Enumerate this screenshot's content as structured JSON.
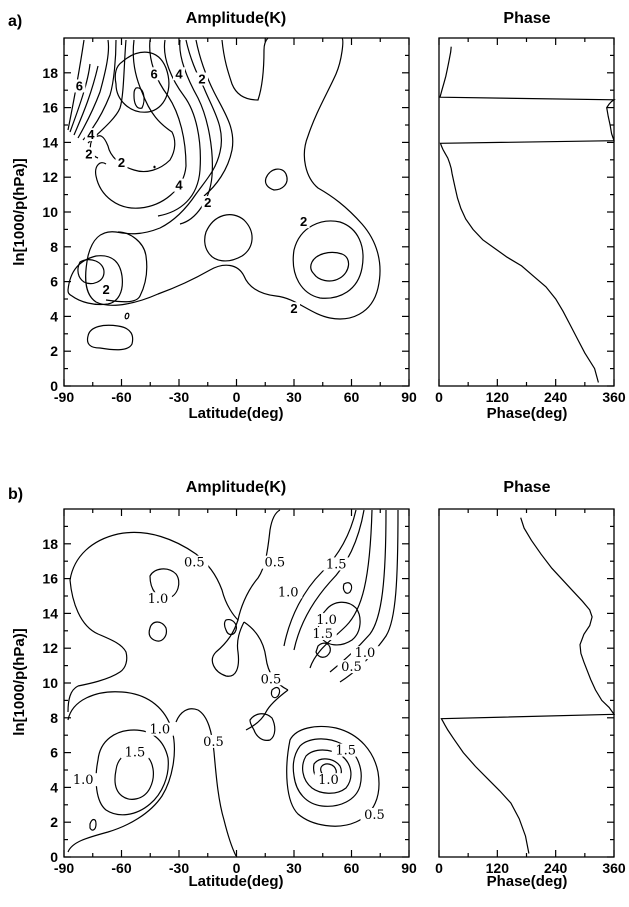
{
  "chart_data": [
    {
      "type": "contour",
      "panel_label": "a)",
      "title": "Amplitude(K)",
      "xlabel": "Latitude(deg)",
      "ylabel": "ln[1000/p(hPa)]",
      "xlim": [
        -90,
        90
      ],
      "ylim": [
        0,
        20
      ],
      "x_ticks": [
        -90,
        -60,
        -30,
        0,
        30,
        60,
        90
      ],
      "y_ticks": [
        0,
        2,
        4,
        6,
        8,
        10,
        12,
        14,
        16,
        18
      ],
      "contour_labels": [
        {
          "text": "6",
          "lat": -82,
          "z": 17.1
        },
        {
          "text": "6",
          "lat": -43,
          "z": 17.8
        },
        {
          "text": "4",
          "lat": -30,
          "z": 17.8
        },
        {
          "text": "2",
          "lat": -18,
          "z": 17.5
        },
        {
          "text": "4",
          "lat": -76,
          "z": 14.3
        },
        {
          "text": "2",
          "lat": -77,
          "z": 13.2
        },
        {
          "text": "2",
          "lat": -60,
          "z": 12.7
        },
        {
          "text": "4",
          "lat": -30,
          "z": 11.4
        },
        {
          "text": "2",
          "lat": -15,
          "z": 10.4
        },
        {
          "text": "2",
          "lat": 35,
          "z": 9.3
        },
        {
          "text": "2",
          "lat": -68,
          "z": 5.4
        },
        {
          "text": "2",
          "lat": 30,
          "z": 4.3
        }
      ]
    },
    {
      "type": "line",
      "title": "Phase",
      "xlabel": "Phase(deg)",
      "xlim": [
        0,
        360
      ],
      "ylim": [
        0,
        20
      ],
      "x_ticks": [
        0,
        120,
        240,
        360
      ],
      "series": [
        {
          "x": [
            328,
            320,
            300,
            285,
            270,
            255,
            240,
            220,
            195,
            170,
            140,
            115,
            90,
            70,
            55,
            45,
            38,
            34,
            30,
            27,
            25,
            22,
            18,
            12,
            8,
            5,
            3,
            360,
            355,
            352,
            348,
            345,
            350,
            355,
            360,
            2,
            6,
            10,
            14,
            17,
            20,
            22,
            24,
            25
          ],
          "y": [
            0.2,
            1,
            1.9,
            2.7,
            3.5,
            4.3,
            5,
            5.7,
            6.3,
            6.9,
            7.4,
            7.9,
            8.4,
            9,
            9.6,
            10.2,
            10.8,
            11.3,
            11.8,
            12.2,
            12.5,
            12.8,
            13.1,
            13.4,
            13.6,
            13.8,
            13.95,
            14.1,
            14.5,
            15,
            15.5,
            16,
            16.2,
            16.35,
            16.45,
            16.6,
            17,
            17.4,
            17.8,
            18.2,
            18.6,
            18.9,
            19.2,
            19.5
          ]
        }
      ]
    },
    {
      "type": "contour",
      "panel_label": "b)",
      "title": "Amplitude(K)",
      "xlabel": "Latitude(deg)",
      "ylabel": "ln[1000/p(hPa)]",
      "xlim": [
        -90,
        90
      ],
      "ylim": [
        0,
        20
      ],
      "x_ticks": [
        -90,
        -60,
        -30,
        0,
        30,
        60,
        90
      ],
      "y_ticks": [
        0,
        2,
        4,
        6,
        8,
        10,
        12,
        14,
        16,
        18
      ],
      "contour_labels": [
        {
          "text": "0.5",
          "lat": -22,
          "z": 16.8
        },
        {
          "text": "0.5",
          "lat": 20,
          "z": 16.8
        },
        {
          "text": "1.5",
          "lat": 52,
          "z": 16.7
        },
        {
          "text": "1.0",
          "lat": -41,
          "z": 14.7
        },
        {
          "text": "1.0",
          "lat": 27,
          "z": 15.1
        },
        {
          "text": "1.0",
          "lat": 47,
          "z": 13.5
        },
        {
          "text": "1.5",
          "lat": 45,
          "z": 12.7
        },
        {
          "text": "1.0",
          "lat": 67,
          "z": 11.6
        },
        {
          "text": "0.5",
          "lat": 60,
          "z": 10.8
        },
        {
          "text": "0.5",
          "lat": 18,
          "z": 10.1
        },
        {
          "text": "1.0",
          "lat": -40,
          "z": 7.2
        },
        {
          "text": "1.5",
          "lat": -53,
          "z": 5.9
        },
        {
          "text": "0.5",
          "lat": -12,
          "z": 6.5
        },
        {
          "text": "1.5",
          "lat": 57,
          "z": 6.0
        },
        {
          "text": "1.0",
          "lat": -80,
          "z": 4.3
        },
        {
          "text": "1.0",
          "lat": 48,
          "z": 4.3
        },
        {
          "text": "0.5",
          "lat": 72,
          "z": 2.3
        }
      ]
    },
    {
      "type": "line",
      "title": "Phase",
      "xlabel": "Phase(deg)",
      "xlim": [
        0,
        360
      ],
      "ylim": [
        0,
        20
      ],
      "x_ticks": [
        0,
        120,
        240,
        360
      ],
      "series": [
        {
          "x": [
            185,
            178,
            165,
            148,
            125,
            100,
            75,
            50,
            30,
            18,
            12,
            8,
            5,
            360,
            350,
            335,
            322,
            312,
            305,
            298,
            292,
            290,
            298,
            310,
            315,
            310,
            295,
            275,
            255,
            232,
            210,
            190,
            175,
            168
          ],
          "y": [
            0.2,
            1.2,
            2.2,
            3.1,
            3.8,
            4.5,
            5.2,
            6,
            6.8,
            7.3,
            7.6,
            7.8,
            7.95,
            8.2,
            8.6,
            9,
            9.6,
            10.2,
            10.7,
            11.2,
            11.7,
            12.2,
            12.8,
            13.3,
            13.8,
            14.2,
            14.7,
            15.3,
            15.9,
            16.6,
            17.4,
            18.2,
            18.9,
            19.5
          ]
        }
      ]
    }
  ]
}
